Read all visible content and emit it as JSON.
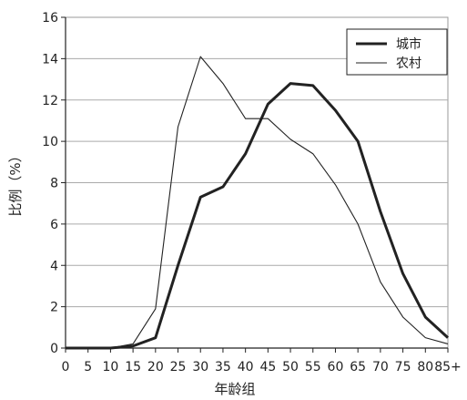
{
  "chart_data": {
    "type": "line",
    "title": "",
    "xlabel": "年龄组",
    "ylabel": "比例（%）",
    "categories": [
      "0",
      "5",
      "10",
      "15",
      "20",
      "25",
      "30",
      "35",
      "40",
      "45",
      "50",
      "55",
      "60",
      "65",
      "70",
      "75",
      "80",
      "85+"
    ],
    "ylim": [
      0,
      16
    ],
    "y_ticks": [
      0,
      2,
      4,
      6,
      8,
      10,
      12,
      14,
      16
    ],
    "grid": "horizontal",
    "legend_position": "top-right",
    "series": [
      {
        "name": "城市",
        "color": "#222222",
        "line_style": "thick",
        "values": [
          0,
          0,
          0,
          0.1,
          0.5,
          4.0,
          7.3,
          7.8,
          9.4,
          11.8,
          12.8,
          12.7,
          11.5,
          10.0,
          6.6,
          3.6,
          1.5,
          0.5
        ]
      },
      {
        "name": "农村",
        "color": "#222222",
        "line_style": "thin",
        "values": [
          0,
          0,
          0,
          0.2,
          1.9,
          10.7,
          14.1,
          12.8,
          11.1,
          11.1,
          10.1,
          9.4,
          7.9,
          6.0,
          3.2,
          1.5,
          0.5,
          0.2
        ]
      }
    ]
  }
}
